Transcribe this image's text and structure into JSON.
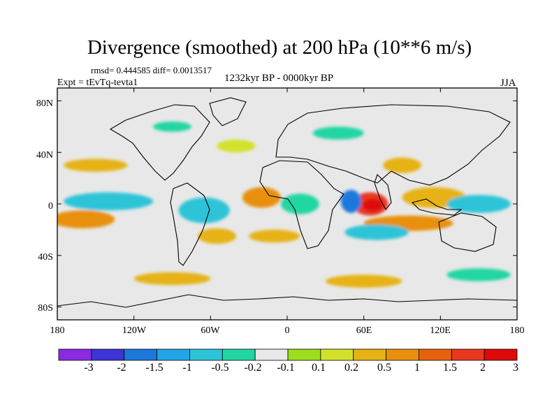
{
  "title": "Divergence (smoothed) at 200 hPa (10**6 m/s)",
  "stats_text": "rmsd= 0.444585 diff= 0.0013517",
  "experiment_text": "Expt = tEvTq-tevta1",
  "period_text": "1232kyr BP - 0000kyr BP",
  "season_text": "JJA",
  "lat_axis": {
    "labels": [
      "80N",
      "40N",
      "0",
      "40S",
      "80S"
    ],
    "values": [
      80,
      40,
      0,
      -40,
      -80
    ]
  },
  "lon_axis": {
    "labels": [
      "180",
      "120W",
      "60W",
      "0",
      "60E",
      "120E",
      "180"
    ],
    "values": [
      -180,
      -120,
      -60,
      0,
      60,
      120,
      180
    ]
  },
  "extent": {
    "lon": [
      -180,
      180
    ],
    "lat": [
      -90,
      90
    ]
  },
  "colorbar": {
    "colors": [
      "#8a2be2",
      "#3d35d6",
      "#1e78dc",
      "#20a6e8",
      "#2dc4d8",
      "#22d6a4",
      "#e8e8e8",
      "#9ddc1e",
      "#d2e22c",
      "#e6b216",
      "#e8900e",
      "#e8620e",
      "#e83820",
      "#dd0a0a"
    ],
    "labels": [
      "-3",
      "-2",
      "-1.5",
      "-1",
      "-0.5",
      "-0.2",
      "-0.1",
      "0.1",
      "0.2",
      "0.5",
      "1",
      "1.5",
      "2",
      "3"
    ]
  },
  "chart_data": {
    "type": "contour-map",
    "title": "Divergence (smoothed) at 200 hPa (10**6 m/s)",
    "variable": "divergence",
    "units": "10**6 m/s",
    "levels": [
      -3,
      -2,
      -1.5,
      -1,
      -0.5,
      -0.2,
      -0.1,
      0.1,
      0.2,
      0.5,
      1,
      1.5,
      2,
      3
    ],
    "features": [
      {
        "name": "arabian-sea-max",
        "lon": 65,
        "lat": 0,
        "rx": 14,
        "ry": 9,
        "value": 2.5
      },
      {
        "name": "arabian-sea-core",
        "lon": 67,
        "lat": -1,
        "rx": 8,
        "ry": 5,
        "value": 3.2
      },
      {
        "name": "east-africa-min",
        "lon": 50,
        "lat": 2,
        "rx": 8,
        "ry": 9,
        "value": -1.8
      },
      {
        "name": "indian-ocean-band",
        "lon": 95,
        "lat": -15,
        "rx": 35,
        "ry": 6,
        "value": 1.2
      },
      {
        "name": "s-indian-ocean-min",
        "lon": 70,
        "lat": -22,
        "rx": 25,
        "ry": 6,
        "value": -0.8
      },
      {
        "name": "maritime-continent",
        "lon": 115,
        "lat": 5,
        "rx": 25,
        "ry": 8,
        "value": 0.5
      },
      {
        "name": "w-pacific-min",
        "lon": 150,
        "lat": 0,
        "rx": 25,
        "ry": 7,
        "value": -0.6
      },
      {
        "name": "e-pacific-max",
        "lon": -160,
        "lat": -12,
        "rx": 25,
        "ry": 7,
        "value": 1.4
      },
      {
        "name": "e-pacific-min",
        "lon": -140,
        "lat": 2,
        "rx": 35,
        "ry": 7,
        "value": -0.9
      },
      {
        "name": "n-pacific-band",
        "lon": -150,
        "lat": 30,
        "rx": 25,
        "ry": 5,
        "value": 0.8
      },
      {
        "name": "amazon-min",
        "lon": -65,
        "lat": -5,
        "rx": 20,
        "ry": 10,
        "value": -0.7
      },
      {
        "name": "s-america-max",
        "lon": -55,
        "lat": -25,
        "rx": 15,
        "ry": 6,
        "value": 0.7
      },
      {
        "name": "atlantic-max",
        "lon": -20,
        "lat": 5,
        "rx": 15,
        "ry": 8,
        "value": 1.1
      },
      {
        "name": "w-africa-min",
        "lon": 10,
        "lat": 0,
        "rx": 15,
        "ry": 8,
        "value": -0.5
      },
      {
        "name": "s-atlantic-max",
        "lon": -10,
        "lat": -25,
        "rx": 20,
        "ry": 5,
        "value": 0.8
      },
      {
        "name": "s-pacific-60s",
        "lon": -90,
        "lat": -58,
        "rx": 30,
        "ry": 5,
        "value": 0.6
      },
      {
        "name": "s-indian-60s",
        "lon": 60,
        "lat": -60,
        "rx": 30,
        "ry": 5,
        "value": 0.6
      },
      {
        "name": "s-pacific-60s-min",
        "lon": 150,
        "lat": -55,
        "rx": 25,
        "ry": 5,
        "value": -0.5
      },
      {
        "name": "n-atlantic",
        "lon": -40,
        "lat": 45,
        "rx": 15,
        "ry": 5,
        "value": 0.4
      },
      {
        "name": "n-europe",
        "lon": 40,
        "lat": 55,
        "rx": 20,
        "ry": 5,
        "value": -0.5
      },
      {
        "name": "tibet",
        "lon": 90,
        "lat": 30,
        "rx": 15,
        "ry": 6,
        "value": 0.6
      },
      {
        "name": "hudson-min",
        "lon": -90,
        "lat": 60,
        "rx": 15,
        "ry": 4,
        "value": -0.4
      }
    ]
  }
}
